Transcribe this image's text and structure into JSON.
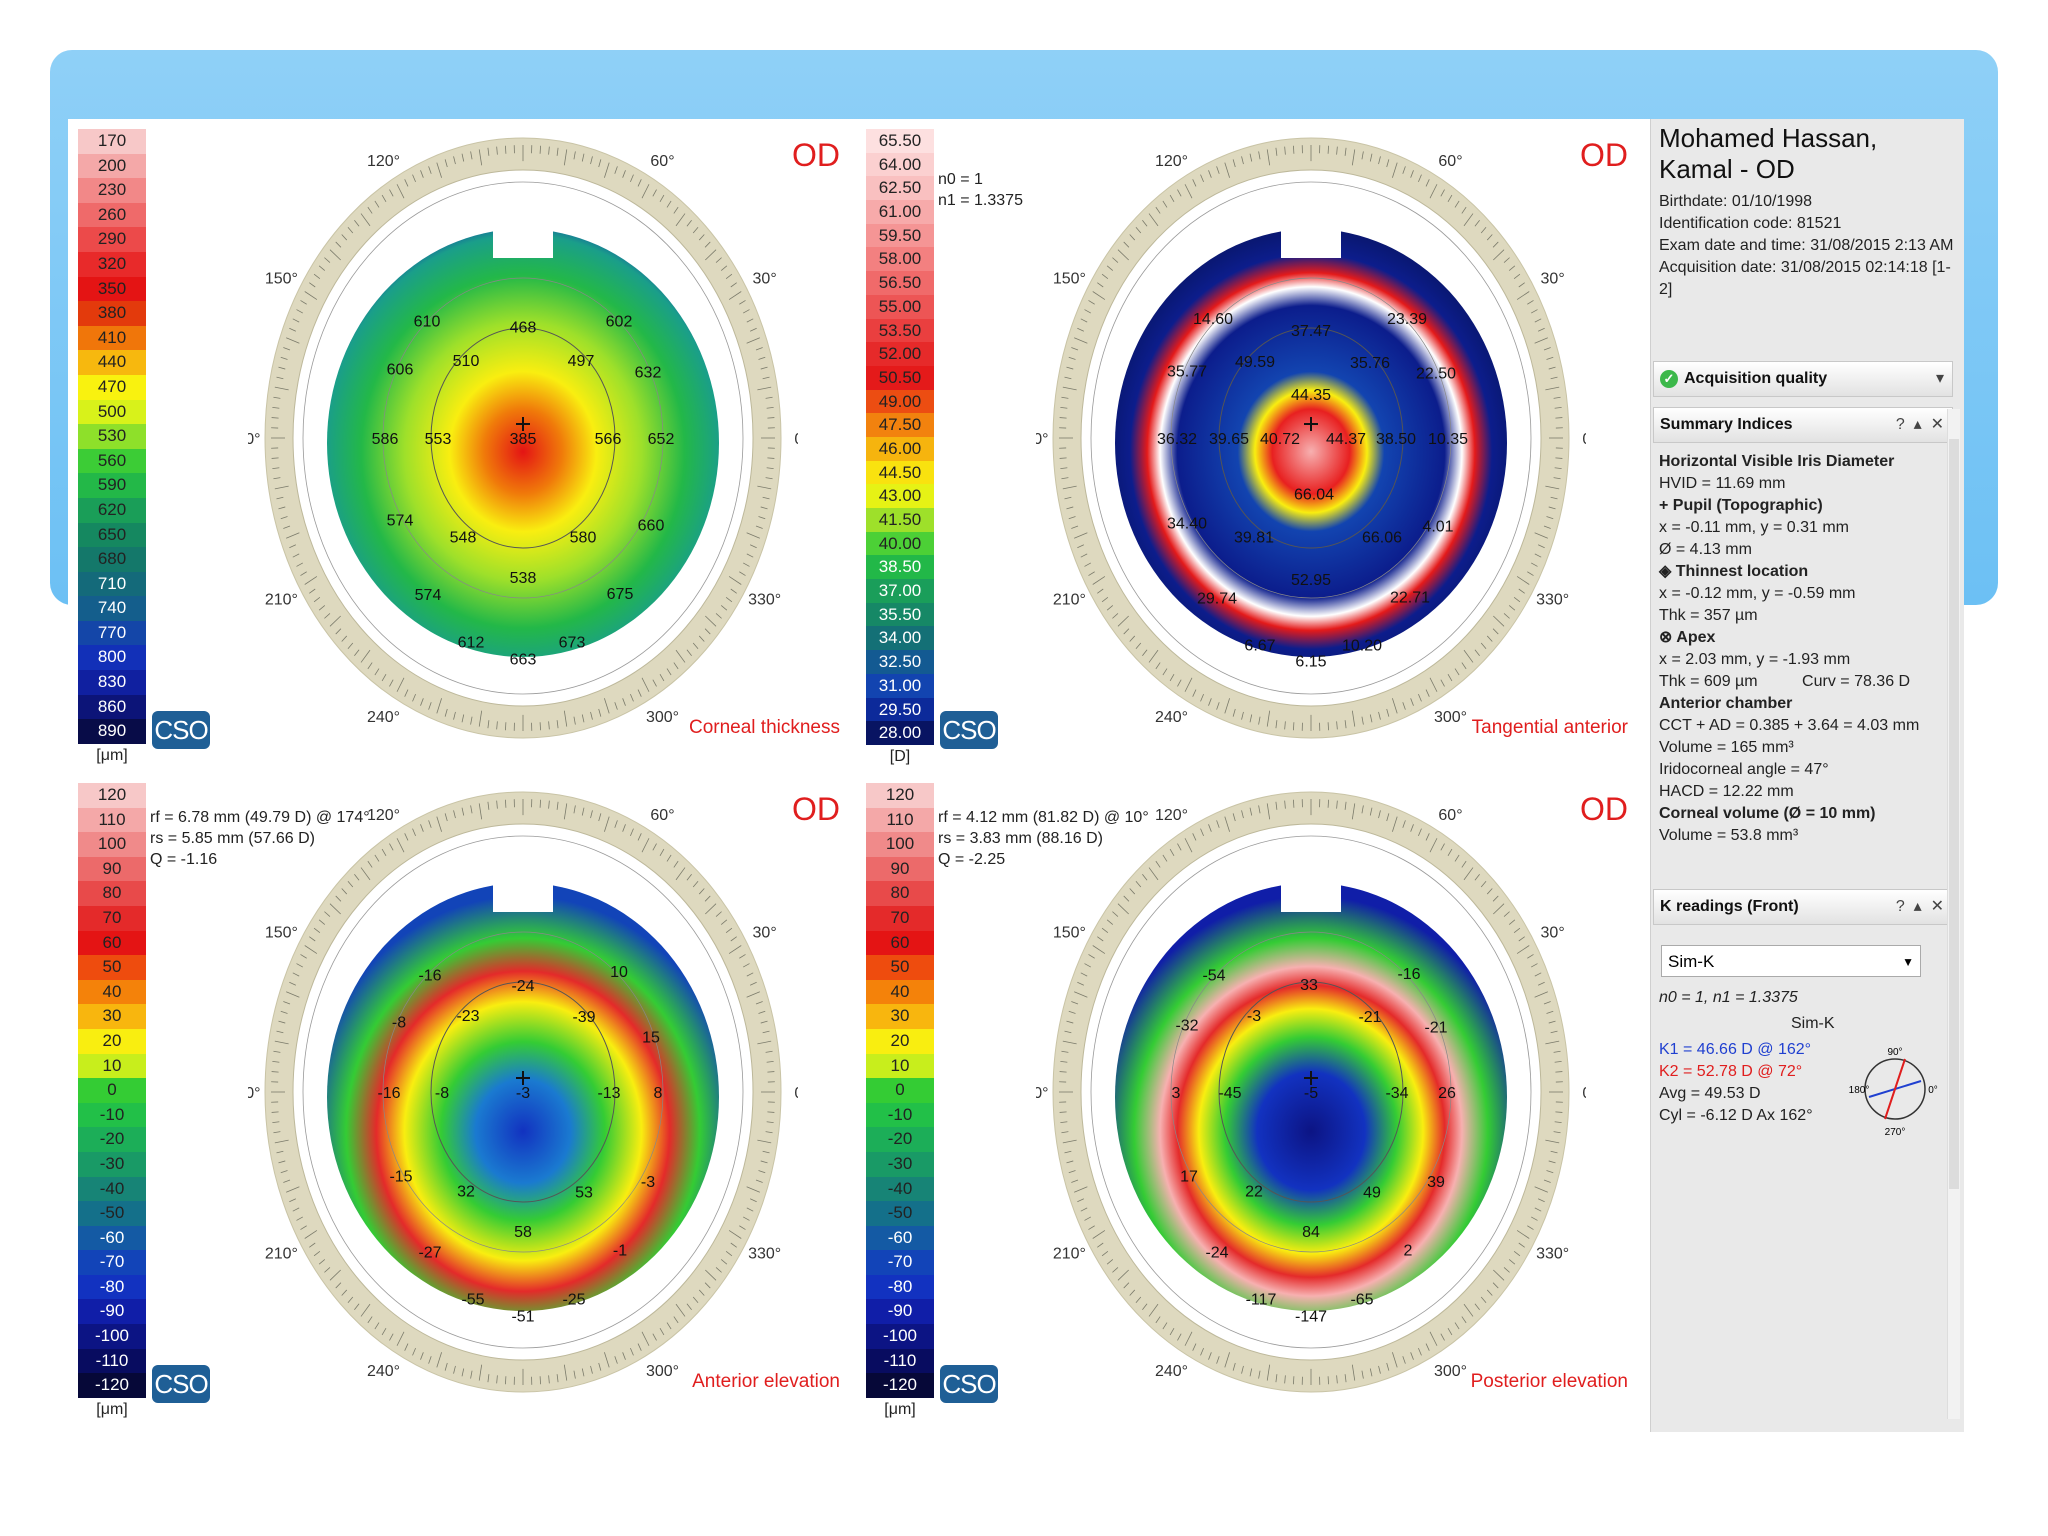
{
  "scale_values": {
    "thickness": [
      "170",
      "200",
      "230",
      "260",
      "290",
      "320",
      "350",
      "380",
      "410",
      "440",
      "470",
      "500",
      "530",
      "560",
      "590",
      "620",
      "650",
      "680",
      "710",
      "740",
      "770",
      "800",
      "830",
      "860",
      "890"
    ],
    "curvature": [
      "65.50",
      "64.00",
      "62.50",
      "61.00",
      "59.50",
      "58.00",
      "56.50",
      "55.00",
      "53.50",
      "52.00",
      "50.50",
      "49.00",
      "47.50",
      "46.00",
      "44.50",
      "43.00",
      "41.50",
      "40.00",
      "38.50",
      "37.00",
      "35.50",
      "34.00",
      "32.50",
      "31.00",
      "29.50",
      "28.00"
    ],
    "elevation": [
      "120",
      "110",
      "100",
      "90",
      "80",
      "70",
      "60",
      "50",
      "40",
      "30",
      "20",
      "10",
      "0",
      "-10",
      "-20",
      "-30",
      "-40",
      "-50",
      "-60",
      "-70",
      "-80",
      "-90",
      "-100",
      "-110",
      "-120"
    ]
  },
  "scale_colors": {
    "thickness": [
      "#f7c8c8",
      "#f4a8a8",
      "#f28888",
      "#ef6a6a",
      "#ec4a4a",
      "#e82a2a",
      "#e41414",
      "#e33a0c",
      "#f0760a",
      "#f7b80e",
      "#f9f20f",
      "#d8f21a",
      "#8ee02a",
      "#3ccc36",
      "#23b848",
      "#1a9e58",
      "#158860",
      "#14786a",
      "#146a7a",
      "#145e8c",
      "#1446a8",
      "#1230b8",
      "#1020a0",
      "#0c1478",
      "#080c48"
    ],
    "curvature": [
      "#fde0e0",
      "#fbd0d0",
      "#f9c0c0",
      "#f7aaaa",
      "#f59595",
      "#f38080",
      "#f06a6a",
      "#ed5555",
      "#ea3f3f",
      "#e62a2a",
      "#e41a1a",
      "#ec4d12",
      "#f2820e",
      "#f6b40e",
      "#f9e20f",
      "#e6f215",
      "#9ee02a",
      "#4cd036",
      "#22b848",
      "#1a9e5a",
      "#168866",
      "#147076",
      "#135a92",
      "#1244b0",
      "#0c2a9a",
      "#081462"
    ],
    "elevation": [
      "#f7c8c8",
      "#f4a8a8",
      "#f08a8a",
      "#ec6a6a",
      "#e84a4a",
      "#e42a2a",
      "#e41414",
      "#ee4c0e",
      "#f4820a",
      "#f8b60e",
      "#f9ee10",
      "#c8ee1c",
      "#34cc34",
      "#22c048",
      "#1cae58",
      "#199a66",
      "#178476",
      "#14708a",
      "#145aa4",
      "#1244b8",
      "#1232c0",
      "#101ea8",
      "#0c1484",
      "#080c60",
      "#060838"
    ]
  },
  "thickness_map": {
    "od": "OD",
    "title": "Corneal thickness",
    "unit": "[μm]",
    "values": [
      "610",
      "468",
      "602",
      "606",
      "510",
      "497",
      "632",
      "586",
      "553",
      "385",
      "566",
      "652",
      "574",
      "548",
      "580",
      "660",
      "538",
      "574",
      "675",
      "612",
      "663",
      "673"
    ]
  },
  "tangential_map": {
    "od": "OD",
    "title": "Tangential anterior",
    "unit": "[D]",
    "params": [
      "n0 = 1",
      "n1 = 1.3375"
    ],
    "values": [
      "14.60",
      "37.47",
      "23.39",
      "35.77",
      "49.59",
      "35.76",
      "22.50",
      "44.35",
      "36.32",
      "39.65",
      "40.72",
      "44.37",
      "38.50",
      "10.35",
      "66.04",
      "34.40",
      "39.81",
      "66.06",
      "4.01",
      "52.95",
      "29.74",
      "22.71",
      "6.67",
      "6.15",
      "10.20"
    ]
  },
  "anterior_elevation": {
    "od": "OD",
    "title": "Anterior elevation",
    "unit": "[μm]",
    "params": [
      "rf = 6.78 mm (49.79 D) @ 174°",
      "rs = 5.85 mm (57.66 D)",
      "Q = -1.16"
    ],
    "values": [
      "-16",
      "-24",
      "10",
      "-8",
      "-23",
      "-39",
      "15",
      "-16",
      "-8",
      "-3",
      "-13",
      "8",
      "-15",
      "32",
      "53",
      "-3",
      "58",
      "-27",
      "-1",
      "-55",
      "-51",
      "-25"
    ]
  },
  "posterior_elevation": {
    "od": "OD",
    "title": "Posterior elevation",
    "unit": "[μm]",
    "params": [
      "rf = 4.12 mm (81.82 D) @ 10°",
      "rs = 3.83 mm (88.16 D)",
      "Q = -2.25"
    ],
    "values": [
      "-54",
      "33",
      "-16",
      "-32",
      "-3",
      "-21",
      "-21",
      "3",
      "-45",
      "-5",
      "-34",
      "26",
      "17",
      "22",
      "49",
      "39",
      "84",
      "-24",
      "2",
      "-117",
      "-147",
      "-65"
    ]
  },
  "ring_labels": [
    "90°",
    "60°",
    "30°",
    "0°",
    "330°",
    "300°",
    "270°",
    "240°",
    "210°",
    "180°",
    "150°",
    "120°"
  ],
  "logo_text": "CSO",
  "patient": {
    "name": "Mohamed Hassan, Kamal - OD",
    "birthdate": "Birthdate: 01/10/1998",
    "id": "Identification code: 81521",
    "exam": "Exam date and time: 31/08/2015 2:13 AM",
    "acq": "Acquisition date: 31/08/2015 02:14:18 [1-2]"
  },
  "acquisition_quality": "Acquisition quality",
  "summary": {
    "title": "Summary Indices",
    "lines": [
      "Horizontal Visible Iris Diameter",
      "HVID = 11.69 mm",
      "+ Pupil (Topographic)",
      "x = -0.11 mm, y = 0.31 mm",
      "Ø = 4.13 mm",
      "◈ Thinnest location",
      "x = -0.12 mm, y = -0.59 mm",
      "Thk = 357 µm",
      "⊗ Apex",
      "x = 2.03 mm, y = -1.93 mm",
      "Thk = 609 µm          Curv = 78.36 D",
      "Anterior chamber",
      "CCT + AD = 0.385 + 3.64 = 4.03 mm",
      "Volume = 165 mm³",
      "Iridocorneal angle = 47°",
      "HACD = 12.22 mm",
      "Corneal volume (Ø = 10 mm)",
      "Volume = 53.8 mm³"
    ]
  },
  "kreadings": {
    "title": "K readings (Front)",
    "select_value": "Sim-K",
    "indices": "n0 = 1, n1 = 1.3375",
    "simk_label": "Sim-K",
    "k1": "K1 = 46.66 D  @ 162°",
    "k2": "K2 = 52.78 D  @ 72°",
    "avg": "Avg = 49.53 D",
    "cyl": "Cyl = -6.12 D Ax 162°",
    "dial_labels": [
      "90°",
      "0°",
      "180°",
      "270°"
    ]
  },
  "colors": {
    "od_red": "#e01e1e",
    "k1_blue": "#2040d0",
    "k2_red": "#e01e1e",
    "banner": "#7cc8f5"
  }
}
